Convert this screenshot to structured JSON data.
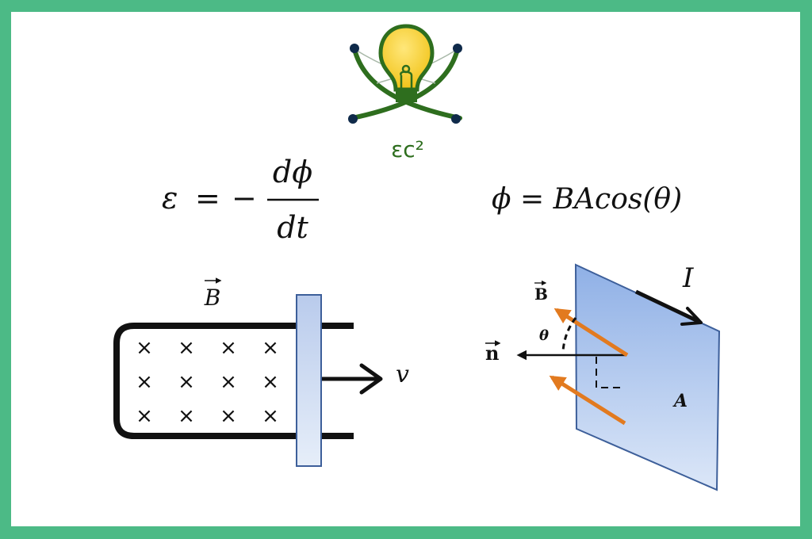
{
  "logo": {
    "text": "εc²",
    "colors": {
      "bulb": "#f5cc18",
      "orbit": "#2e6e1e",
      "node": "#0f2a4a"
    }
  },
  "formulas": {
    "emf": {
      "lhs": "ε",
      "equals": "=",
      "minus": "−",
      "numerator": "dϕ",
      "denominator": "dt"
    },
    "flux": {
      "text": "ϕ = BAcos(θ)"
    }
  },
  "rail_diagram": {
    "field_label": "B",
    "field_symbol": "×",
    "field_grid": {
      "rows": 3,
      "cols": 4
    },
    "velocity_label": "v"
  },
  "flux_diagram": {
    "current_label": "I",
    "field_label": "B",
    "normal_label": "n",
    "angle_label": "θ",
    "area_label": "A",
    "colors": {
      "plane_top": "#8fb0e6",
      "plane_bottom": "#dce7f8",
      "plane_edge": "#3d5f9a",
      "field_arrow": "#e27a1f"
    }
  },
  "colors": {
    "frame": "#4cba86",
    "background": "#ffffff",
    "ink": "#111111"
  }
}
